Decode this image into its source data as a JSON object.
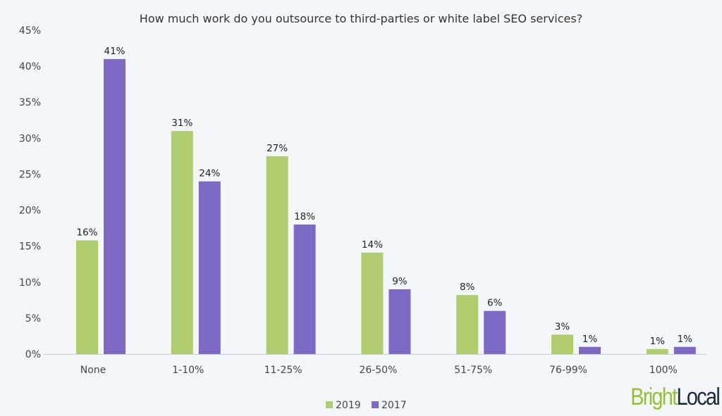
{
  "chart_data": {
    "type": "bar",
    "title": "How much work do you outsource to third-parties or white label SEO services?",
    "categories": [
      "None",
      "1-10%",
      "11-25%",
      "26-50%",
      "51-75%",
      "76-99%",
      "100%"
    ],
    "series": [
      {
        "name": "2019",
        "color": "#afcd6e",
        "values": [
          15.8,
          31,
          27.5,
          14.1,
          8.2,
          2.7,
          0.7
        ],
        "labels": [
          "16%",
          "31%",
          "27%",
          "14%",
          "8%",
          "3%",
          "1%"
        ]
      },
      {
        "name": "2017",
        "color": "#7e69c4",
        "values": [
          41,
          24,
          18,
          9,
          6,
          1,
          1
        ],
        "labels": [
          "41%",
          "24%",
          "18%",
          "9%",
          "6%",
          "1%",
          "1%"
        ]
      }
    ],
    "ylim": [
      0,
      45
    ],
    "yticks": [
      "0%",
      "5%",
      "10%",
      "15%",
      "20%",
      "25%",
      "30%",
      "35%",
      "40%",
      "45%"
    ],
    "grid": false,
    "legend_position": "bottom"
  },
  "logo": {
    "part1": "Bright",
    "part2": "Local",
    "color1": "#98be3c",
    "color2": "#1d2a3a"
  }
}
